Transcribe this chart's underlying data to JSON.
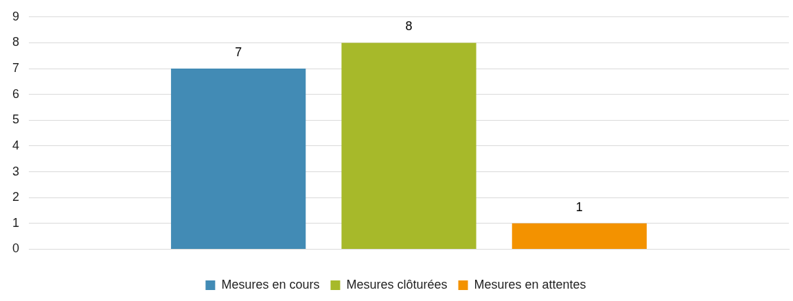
{
  "chart_data": {
    "type": "bar",
    "categories": [
      null
    ],
    "series": [
      {
        "name": "Mesures en cours",
        "color": "#428bb5",
        "values": [
          7
        ]
      },
      {
        "name": "Mesures clôturées",
        "color": "#a7b92a",
        "values": [
          8
        ]
      },
      {
        "name": "Mesures en attentes",
        "color": "#f39200",
        "values": [
          1
        ]
      }
    ],
    "ylim": [
      0,
      9
    ],
    "yticks": [
      0,
      1,
      2,
      3,
      4,
      5,
      6,
      7,
      8,
      9
    ],
    "grid": "y",
    "legend": "bottom",
    "data_labels": true
  }
}
